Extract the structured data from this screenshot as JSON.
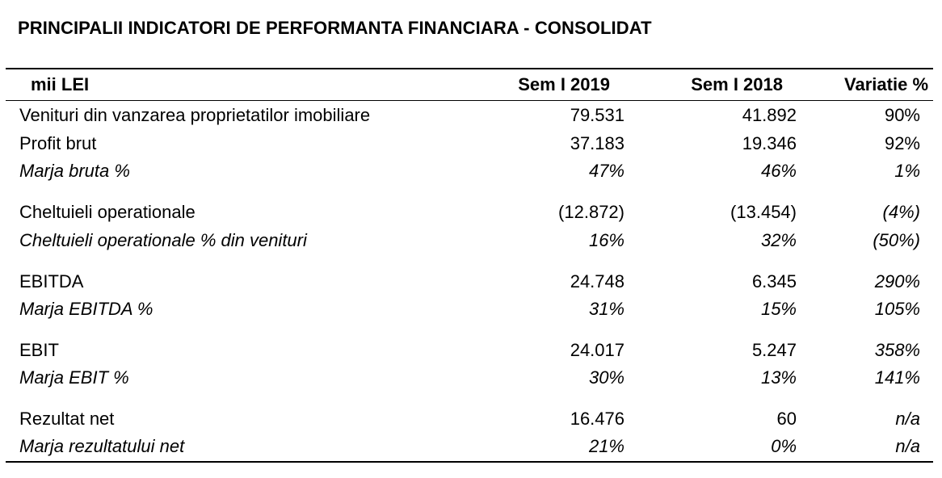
{
  "title": "PRINCIPALII INDICATORI DE PERFORMANTA FINANCIARA - CONSOLIDAT",
  "table": {
    "headers": [
      "mii LEI",
      "Sem I 2019",
      "Sem I 2018",
      "Variatie %"
    ],
    "rows": [
      {
        "label": "Venituri din vanzarea proprietatilor imobiliare",
        "v2019": "79.531",
        "v2018": "41.892",
        "var": "90%"
      },
      {
        "label": "Profit brut",
        "v2019": "37.183",
        "v2018": "19.346",
        "var": "92%"
      },
      {
        "label": "Marja bruta %",
        "v2019": "47%",
        "v2018": "46%",
        "var": "1%"
      },
      {
        "label": "Cheltuieli operationale",
        "v2019": "(12.872)",
        "v2018": "(13.454)",
        "var": "(4%)"
      },
      {
        "label": "Cheltuieli operationale % din venituri",
        "v2019": "16%",
        "v2018": "32%",
        "var": "(50%)"
      },
      {
        "label": "EBITDA",
        "v2019": "24.748",
        "v2018": "6.345",
        "var": "290%"
      },
      {
        "label": "Marja EBITDA %",
        "v2019": "31%",
        "v2018": "15%",
        "var": "105%"
      },
      {
        "label": "EBIT",
        "v2019": "24.017",
        "v2018": "5.247",
        "var": "358%"
      },
      {
        "label": "Marja EBIT %",
        "v2019": "30%",
        "v2018": "13%",
        "var": "141%"
      },
      {
        "label": "Rezultat net",
        "v2019": "16.476",
        "v2018": "60",
        "var": "n/a"
      },
      {
        "label": "Marja rezultatului net",
        "v2019": "21%",
        "v2018": "0%",
        "var": "n/a"
      }
    ]
  }
}
